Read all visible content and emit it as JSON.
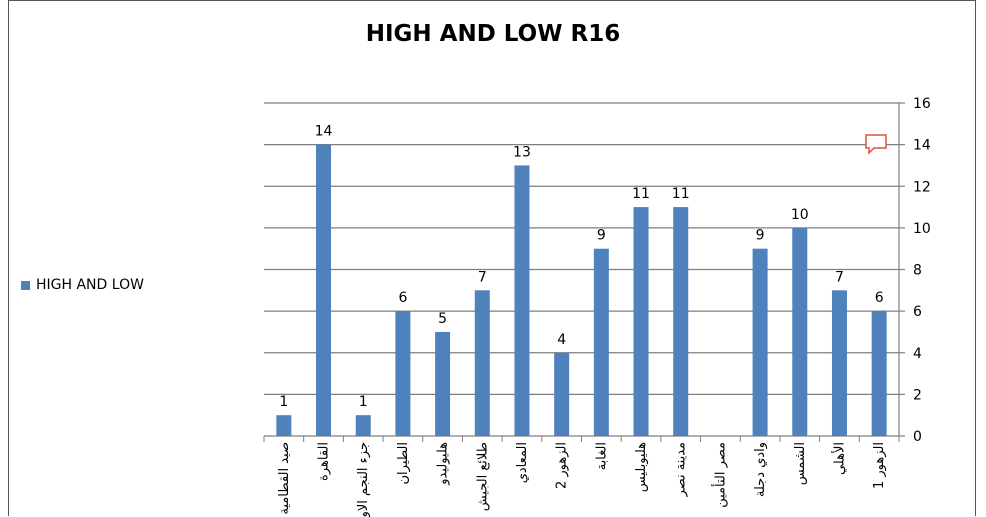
{
  "chart_data": {
    "type": "bar",
    "title": "HIGH AND LOW R16",
    "categories": [
      "صيد القطامية",
      "القاهرة",
      "جزء النجم الاول",
      "الطيران",
      "هليوليدو",
      "طلائع الجيش",
      "المعادي",
      "الزهور 2",
      "الغابة",
      "هليوبليس",
      "مدينة نصر",
      "مصر التأمين",
      "وادي دجلة",
      "الشمس",
      "الأهلي",
      "الزهور 1"
    ],
    "series": [
      {
        "name": "HIGH AND LOW",
        "color": "#4f81bd",
        "values": [
          1,
          14,
          1,
          6,
          5,
          7,
          13,
          4,
          9,
          11,
          11,
          null,
          9,
          10,
          7,
          6
        ]
      }
    ],
    "y_ticks": [
      "0",
      "2",
      "4",
      "6",
      "8",
      "10",
      "12",
      "14",
      "16"
    ],
    "ylim": [
      0,
      16
    ],
    "y_axis_side": "right",
    "grid": true,
    "legend_position": "left",
    "comment_icon": "comment-icon"
  }
}
